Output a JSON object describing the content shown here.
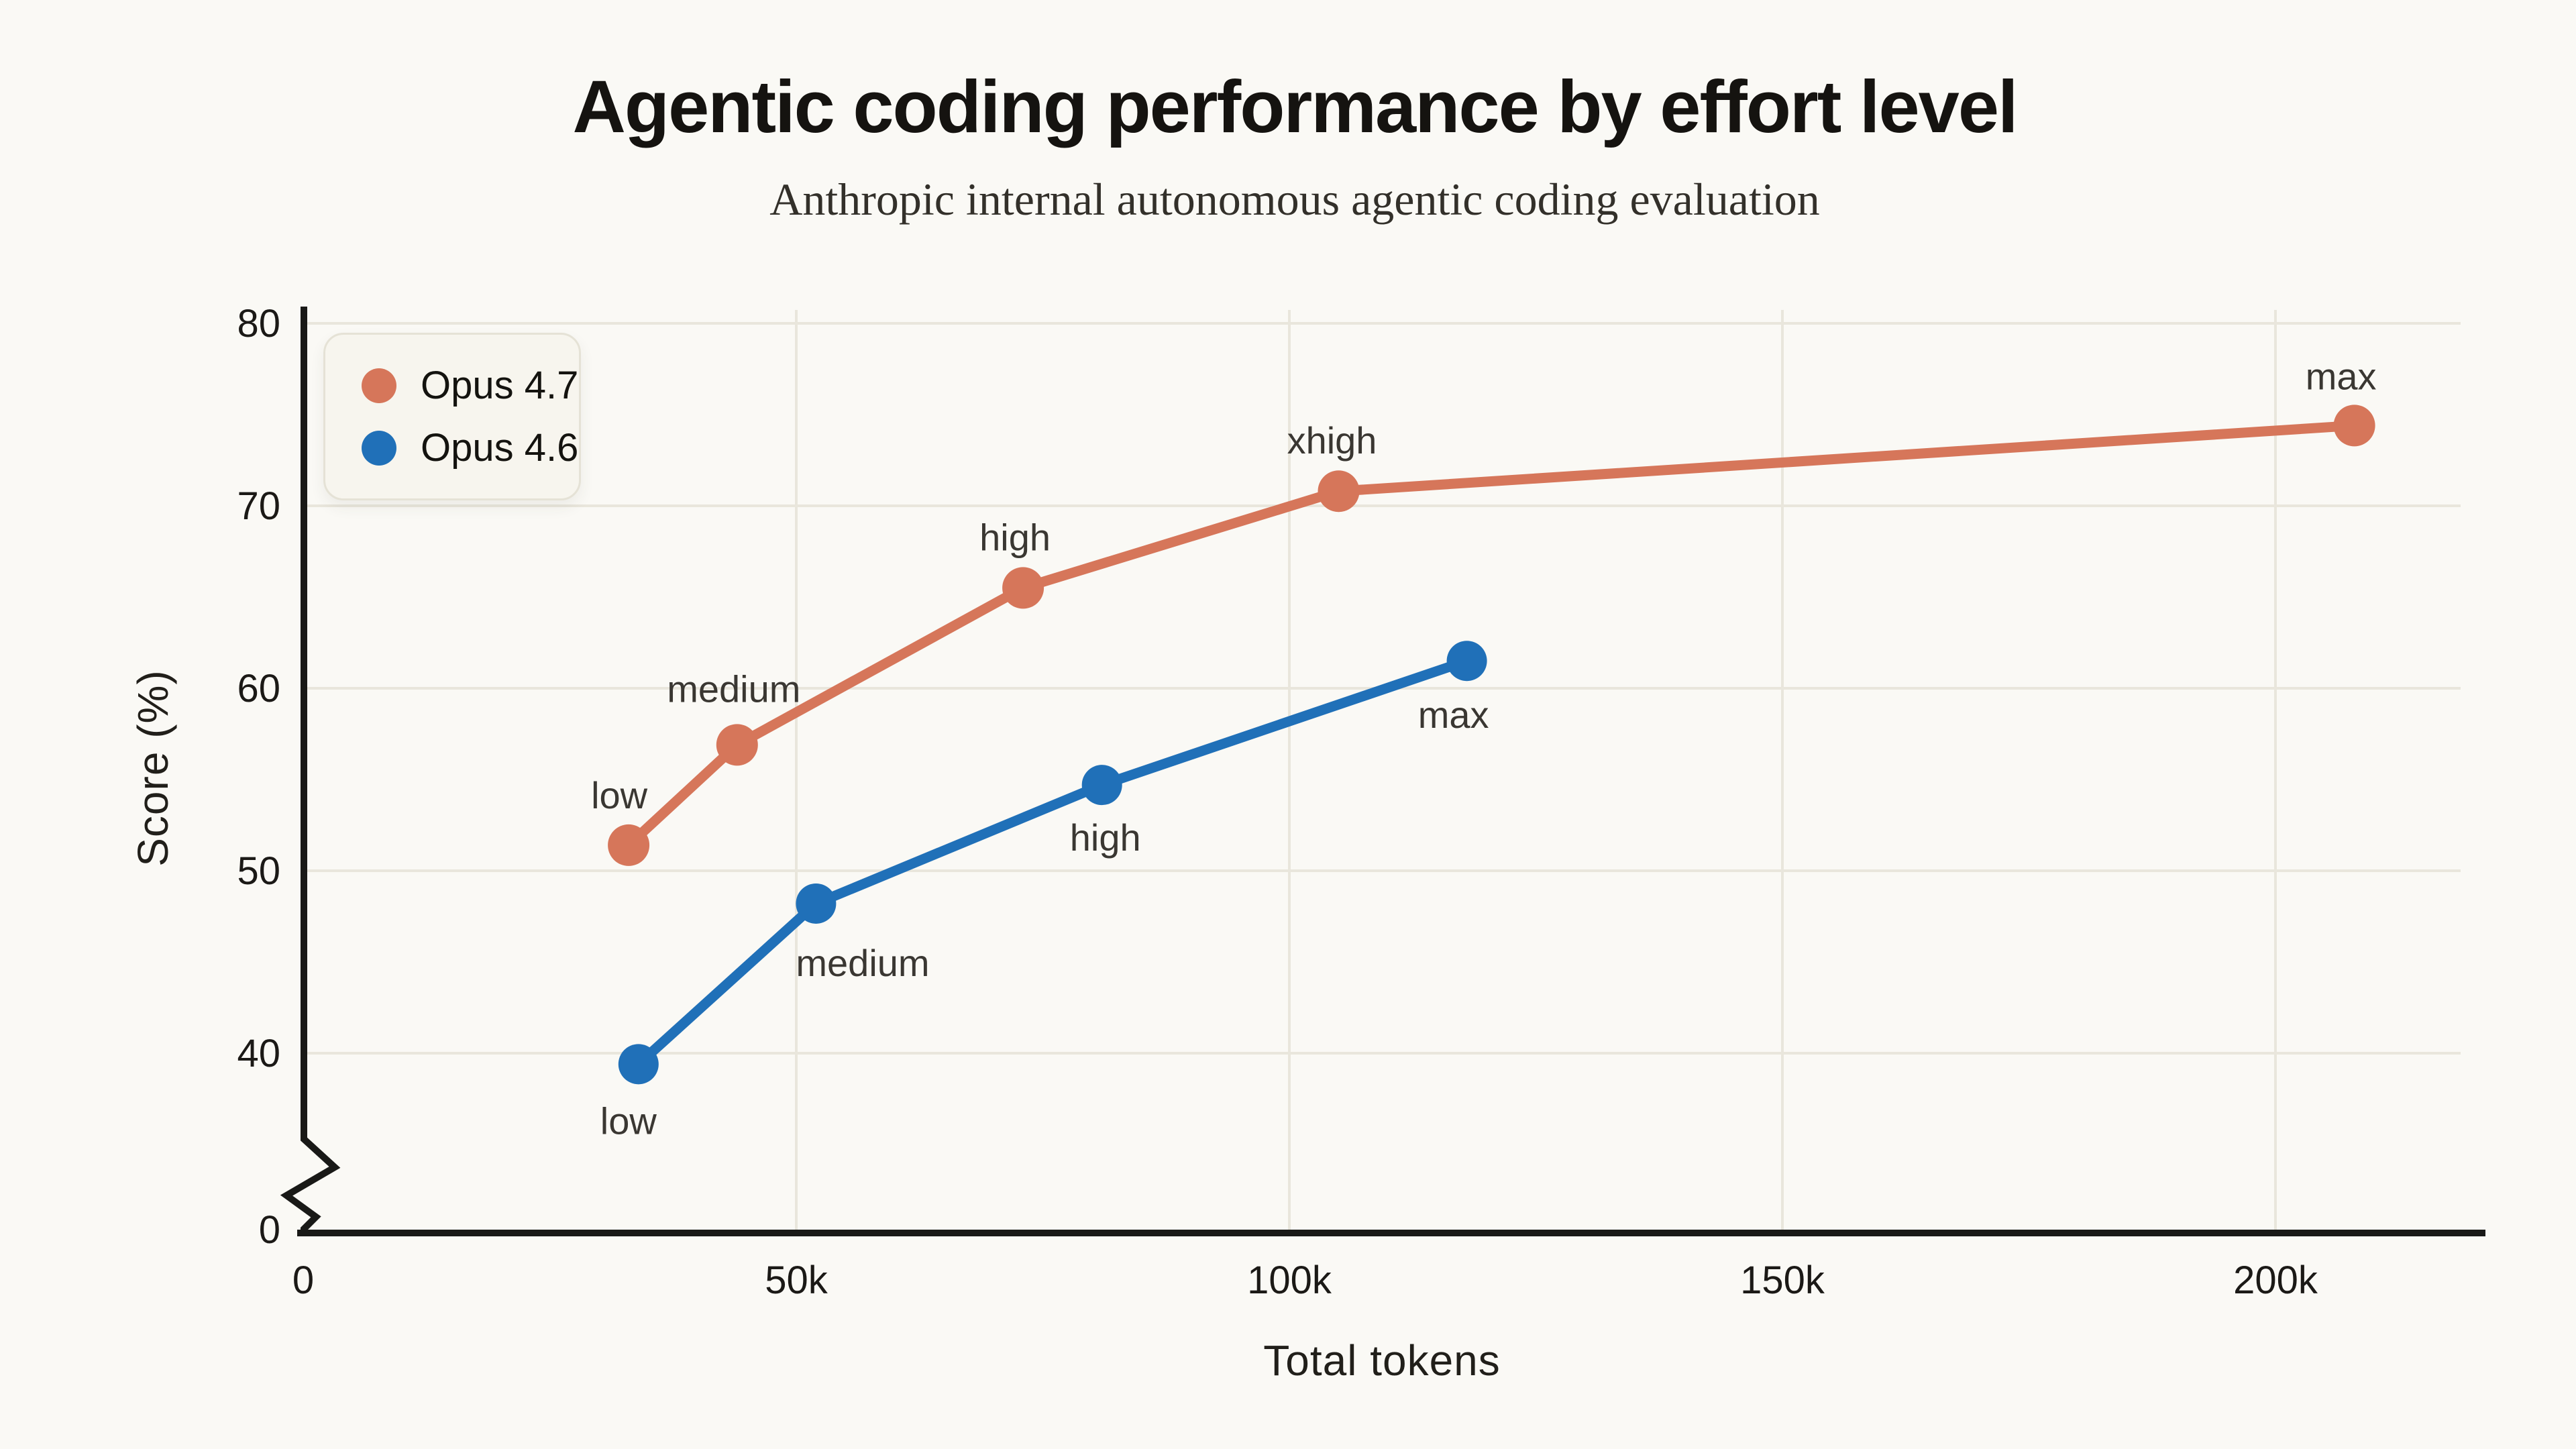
{
  "header": {
    "title": "Agentic coding performance by effort level",
    "subtitle": "Anthropic internal autonomous agentic coding evaluation"
  },
  "legend": {
    "position": "top-left",
    "items": [
      {
        "label": "Opus 4.7",
        "color": "#d6765a"
      },
      {
        "label": "Opus 4.6",
        "color": "#2070b8"
      }
    ]
  },
  "chart_data": {
    "type": "line",
    "title": "Agentic coding performance by effort level",
    "subtitle": "Anthropic internal autonomous agentic coding evaluation",
    "xlabel": "Total tokens",
    "ylabel": "Score (%)",
    "xlim": [
      0,
      221000
    ],
    "ylim": [
      0,
      80
    ],
    "y_axis_break": {
      "between": [
        0,
        40
      ]
    },
    "grid": true,
    "legend_position": "top-left",
    "x_ticks": [
      {
        "value": 0,
        "label": "0"
      },
      {
        "value": 50000,
        "label": "50k"
      },
      {
        "value": 100000,
        "label": "100k"
      },
      {
        "value": 150000,
        "label": "150k"
      },
      {
        "value": 200000,
        "label": "200k"
      }
    ],
    "y_ticks": [
      {
        "value": 0,
        "label": "0"
      },
      {
        "value": 40,
        "label": "40"
      },
      {
        "value": 50,
        "label": "50"
      },
      {
        "value": 60,
        "label": "60"
      },
      {
        "value": 70,
        "label": "70"
      },
      {
        "value": 80,
        "label": "80"
      }
    ],
    "series": [
      {
        "name": "Opus 4.7",
        "color": "#d6765a",
        "marker_radius": 31,
        "points": [
          {
            "x": 33000,
            "y": 51.4,
            "label": "low",
            "label_anchor": "end",
            "label_dx": 28,
            "label_dy": -55
          },
          {
            "x": 44000,
            "y": 56.9,
            "label": "medium",
            "label_anchor": "middle",
            "label_dx": -5,
            "label_dy": -64
          },
          {
            "x": 73000,
            "y": 65.5,
            "label": "high",
            "label_anchor": "middle",
            "label_dx": -12,
            "label_dy": -56
          },
          {
            "x": 105000,
            "y": 70.8,
            "label": "xhigh",
            "label_anchor": "middle",
            "label_dx": -10,
            "label_dy": -56
          },
          {
            "x": 208000,
            "y": 74.4,
            "label": "max",
            "label_anchor": "middle",
            "label_dx": -20,
            "label_dy": -54
          }
        ]
      },
      {
        "name": "Opus 4.6",
        "color": "#2070b8",
        "marker_radius": 30,
        "points": [
          {
            "x": 34000,
            "y": 39.4,
            "label": "low",
            "label_anchor": "middle",
            "label_dx": -15,
            "label_dy": 104
          },
          {
            "x": 52000,
            "y": 48.2,
            "label": "medium",
            "label_anchor": "start",
            "label_dx": -30,
            "label_dy": 108
          },
          {
            "x": 81000,
            "y": 54.7,
            "label": "high",
            "label_anchor": "middle",
            "label_dx": 5,
            "label_dy": 98
          },
          {
            "x": 118000,
            "y": 61.5,
            "label": "max",
            "label_anchor": "middle",
            "label_dx": -20,
            "label_dy": 100
          }
        ]
      }
    ]
  }
}
